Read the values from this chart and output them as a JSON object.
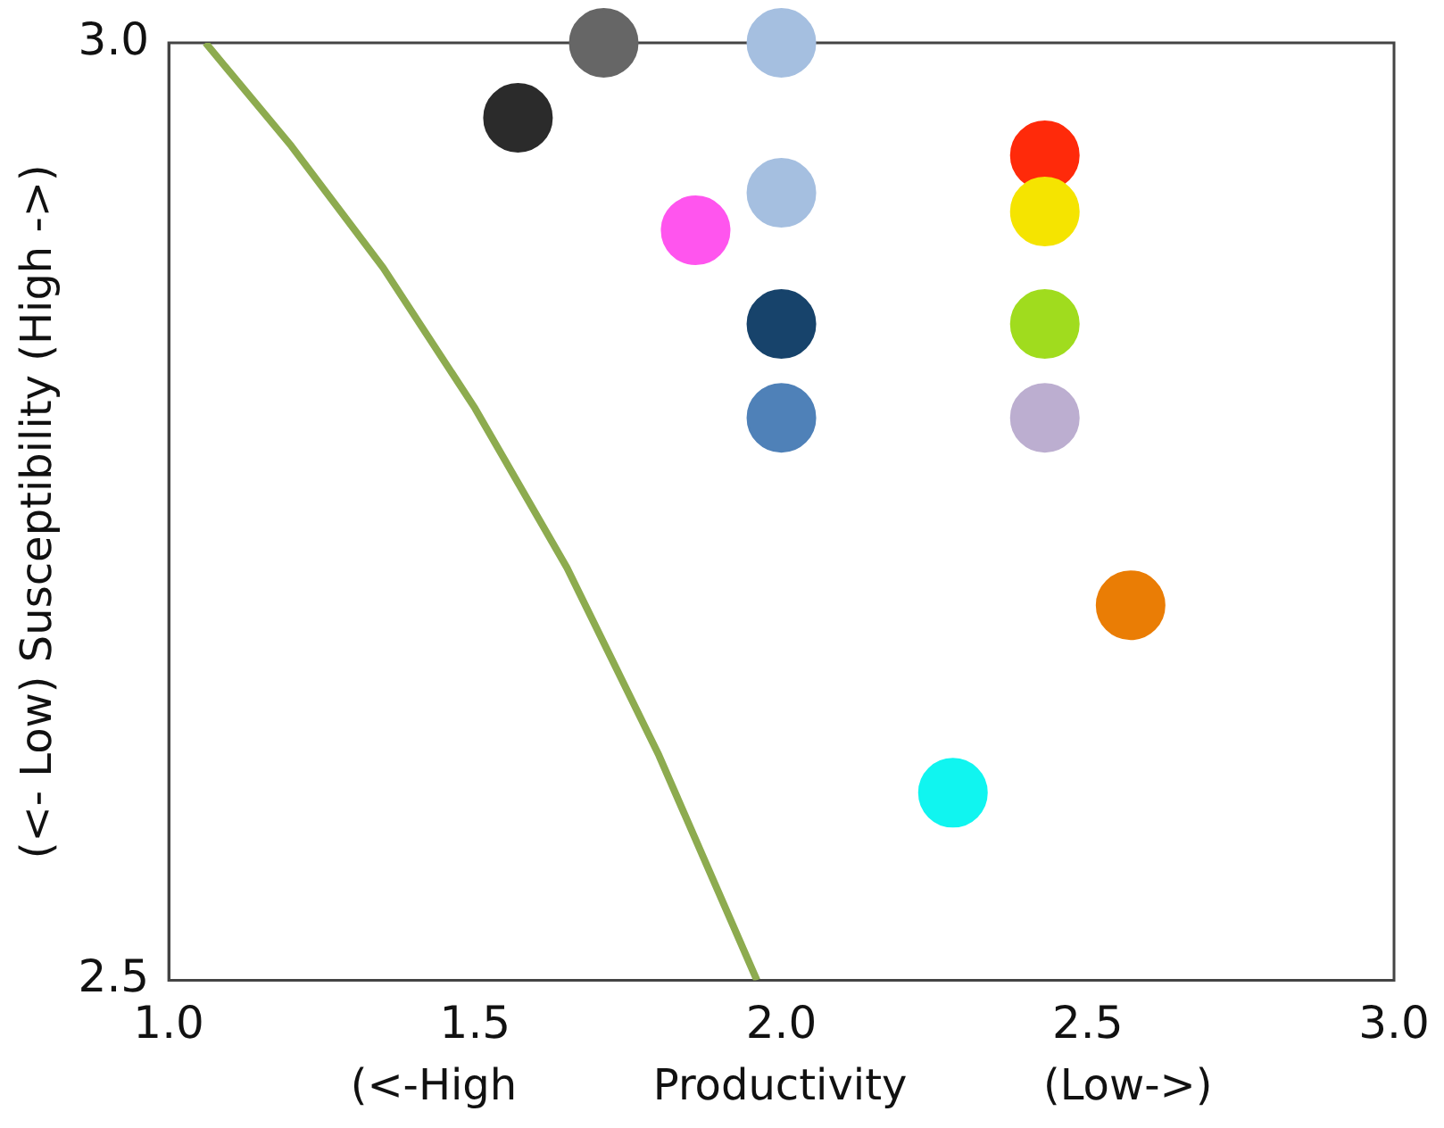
{
  "chart_data": {
    "type": "scatter",
    "xlabel": "(<-High          Productivity          (Low->)",
    "ylabel": "(<- Low) Susceptibility (High ->)",
    "xlim": [
      1.0,
      3.0
    ],
    "xticks": [
      {
        "value": 1.0,
        "label": "1.0"
      },
      1.5,
      {
        "value": 2.0,
        "label": "2.0"
      },
      2.5,
      {
        "value": 3.0,
        "label": "3.0"
      }
    ],
    "ylim": [
      2.5,
      3.0
    ],
    "yticks": [
      2.5,
      {
        "value": 3.0,
        "label": "3.0"
      }
    ],
    "grid": false,
    "legend": false,
    "series": [
      {
        "marker": "circle",
        "x": [
          1.57,
          1.71,
          2.0,
          2.0,
          1.86,
          2.0,
          2.0,
          2.43,
          2.43,
          2.43,
          2.43,
          2.57,
          2.28
        ],
        "values": [
          2.96,
          3.0,
          3.0,
          2.92,
          2.9,
          2.85,
          2.8,
          2.94,
          2.91,
          2.85,
          2.8,
          2.7,
          2.6
        ],
        "colors": [
          "#2b2b2b",
          "#666666",
          "#a5bfe0",
          "#a5bfe0",
          "#ff55ee",
          "#17436b",
          "#4f81b8",
          "#ff2a0a",
          "#f5e400",
          "#a0dc1e",
          "#bcaed0",
          "#ea7d05",
          "#10f5f0"
        ]
      },
      {
        "type": "line",
        "color": "#8dab4f",
        "x": [
          1.06,
          1.2,
          1.35,
          1.5,
          1.65,
          1.8,
          1.88,
          1.96
        ],
        "values": [
          3.0,
          2.945,
          2.88,
          2.805,
          2.72,
          2.62,
          2.56,
          2.5
        ]
      }
    ]
  }
}
